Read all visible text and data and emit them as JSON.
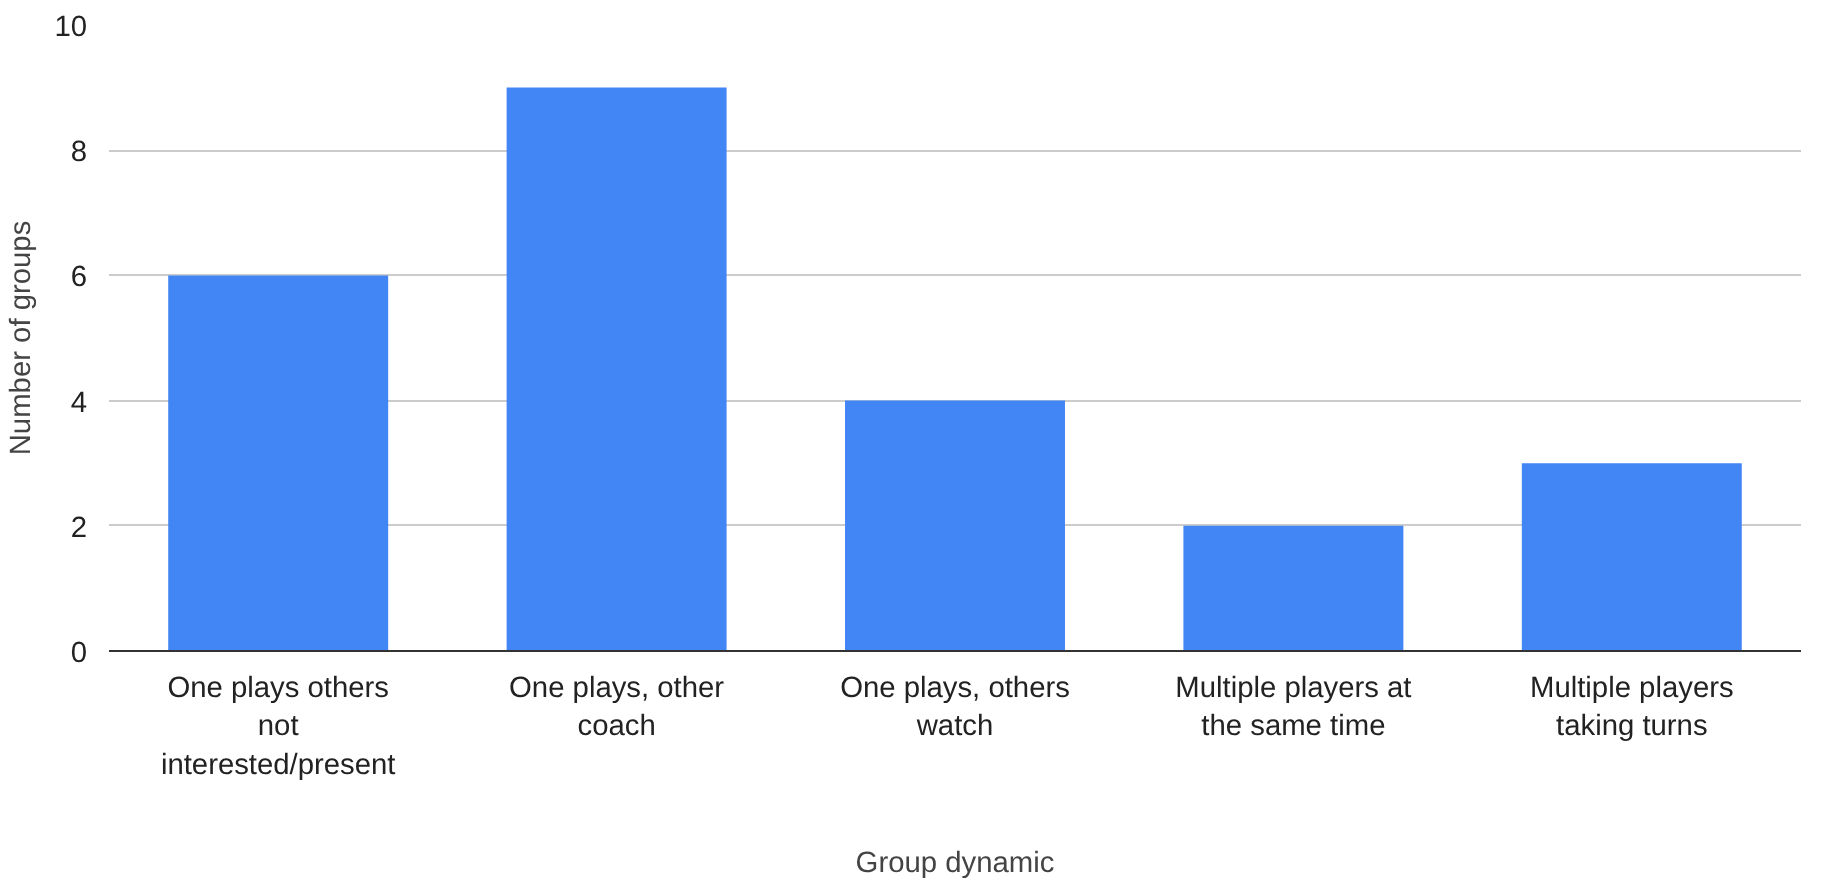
{
  "chart_data": {
    "type": "bar",
    "xlabel": "Group dynamic",
    "ylabel": "Number of groups",
    "categories": [
      "One plays others not interested/present",
      "One plays, other coach",
      "One plays, others watch",
      "Multiple players at the same time",
      "Multiple players taking turns"
    ],
    "values": [
      6,
      9,
      4,
      2,
      3
    ],
    "color": "#4285f4",
    "ylim": [
      0,
      10
    ],
    "yticks": [
      0,
      2,
      4,
      6,
      8,
      10
    ],
    "grid": "y"
  }
}
